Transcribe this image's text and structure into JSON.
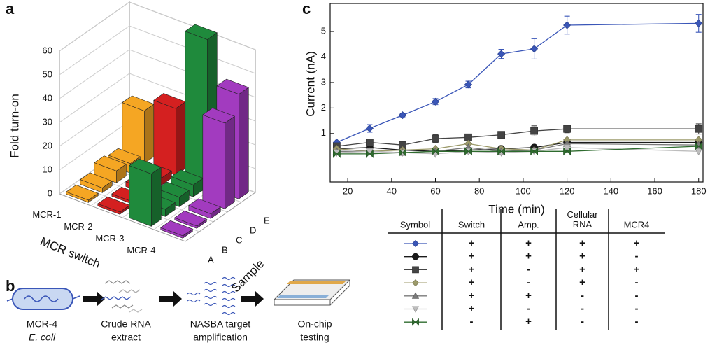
{
  "panel_labels": [
    "a",
    "b",
    "c"
  ],
  "chart_data": [
    {
      "type": "bar3d",
      "zlabel": "Fold turn-on",
      "xlabel": "MCR switch",
      "ylabel": "Sample",
      "rows": [
        "MCR-1",
        "MCR-2",
        "MCR-3",
        "MCR-4"
      ],
      "columns": [
        "A",
        "B",
        "C",
        "D",
        "E"
      ],
      "colors": [
        "#f5a623",
        "#d42020",
        "#1f8a3c",
        "#a23bbf"
      ],
      "values": [
        [
          1,
          2,
          5,
          4,
          22
        ],
        [
          1,
          1,
          2,
          3,
          28
        ],
        [
          22,
          3,
          4,
          5,
          62
        ],
        [
          1,
          1,
          2,
          36,
          44
        ]
      ],
      "zlim": [
        0,
        60
      ],
      "zticks": [
        0,
        10,
        20,
        30,
        40,
        50,
        60
      ],
      "grid": true
    },
    {
      "type": "line",
      "xlabel": "Time (min)",
      "ylabel": "Current (nA)",
      "x": [
        15,
        30,
        45,
        60,
        75,
        90,
        105,
        120,
        180
      ],
      "xlim": [
        12,
        182
      ],
      "xticks": [
        20,
        40,
        60,
        80,
        100,
        120,
        140,
        160,
        180
      ],
      "ylim": [
        -0.9,
        6.1
      ],
      "yticks": [
        1,
        2,
        3,
        4,
        5
      ],
      "series": [
        {
          "marker": "diamond",
          "color": "#3a56b8",
          "values": [
            0.65,
            1.2,
            1.72,
            2.25,
            2.92,
            4.12,
            4.32,
            5.25,
            5.32
          ],
          "errors": [
            0.05,
            0.15,
            0.07,
            0.12,
            0.13,
            0.18,
            0.4,
            0.35,
            0.35
          ]
        },
        {
          "marker": "circle",
          "color": "#1a1a1a",
          "values": [
            0.4,
            0.45,
            0.35,
            0.3,
            0.35,
            0.4,
            0.45,
            0.65,
            0.65
          ]
        },
        {
          "marker": "square",
          "color": "#444444",
          "values": [
            0.5,
            0.65,
            0.55,
            0.8,
            0.85,
            0.95,
            1.1,
            1.18,
            1.18
          ],
          "errors": [
            0.05,
            0.05,
            0.05,
            0.15,
            0.12,
            0.12,
            0.2,
            0.15,
            0.2
          ]
        },
        {
          "marker": "diamond",
          "color": "#9c9a6a",
          "values": [
            0.4,
            0.3,
            0.35,
            0.4,
            0.6,
            0.4,
            0.35,
            0.75,
            0.75
          ]
        },
        {
          "marker": "triangle",
          "color": "#7a7a7a",
          "values": [
            0.3,
            0.3,
            0.25,
            0.3,
            0.45,
            0.3,
            0.35,
            0.6,
            0.55
          ]
        },
        {
          "marker": "triangle-down",
          "color": "#bdbdbd",
          "values": [
            0.25,
            0.3,
            0.25,
            0.2,
            0.3,
            0.25,
            0.3,
            0.45,
            0.3
          ]
        },
        {
          "marker": "bowtie",
          "color": "#2e6b2e",
          "values": [
            0.2,
            0.2,
            0.25,
            0.3,
            0.3,
            0.3,
            0.3,
            0.3,
            0.5
          ]
        }
      ]
    }
  ],
  "diagram": {
    "steps": [
      {
        "lines": [
          "MCR-4",
          "E. coli"
        ]
      },
      {
        "lines": [
          "Crude RNA",
          "extract"
        ]
      },
      {
        "lines": [
          "NASBA target",
          "amplification"
        ]
      },
      {
        "lines": [
          "On-chip",
          "testing"
        ]
      }
    ]
  },
  "table": {
    "columns": [
      "Symbol",
      "Switch",
      "Amp.",
      "Cellular RNA",
      "MCR4"
    ],
    "rows": [
      [
        "+",
        "+",
        "+",
        "+"
      ],
      [
        "+",
        "+",
        "+",
        "-"
      ],
      [
        "+",
        "-",
        "+",
        "+"
      ],
      [
        "+",
        "-",
        "+",
        "-"
      ],
      [
        "+",
        "+",
        "-",
        "-"
      ],
      [
        "+",
        "-",
        "-",
        "-"
      ],
      [
        "-",
        "+",
        "-",
        "-"
      ]
    ]
  }
}
